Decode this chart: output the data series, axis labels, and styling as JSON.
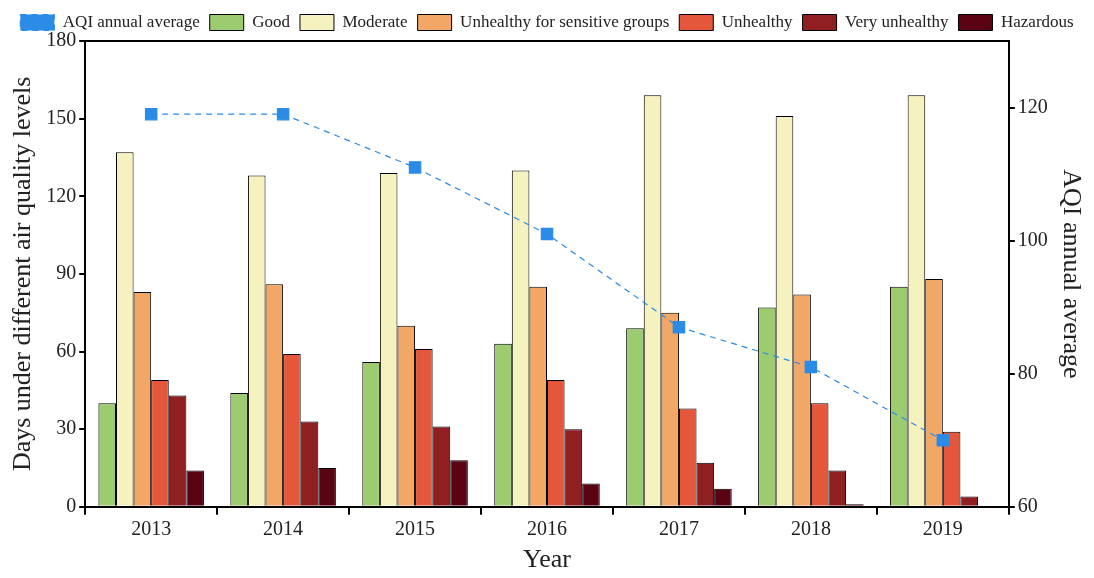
{
  "chart_data": {
    "type": "bar",
    "xlabel": "Year",
    "ylabel": "Days under different air quality levels",
    "y2label": "AQI annual average",
    "categories": [
      "2013",
      "2014",
      "2015",
      "2016",
      "2017",
      "2018",
      "2019"
    ],
    "series": [
      {
        "name": "Good",
        "color": "#9dcb6f",
        "values": [
          40,
          44,
          56,
          63,
          69,
          77,
          85
        ]
      },
      {
        "name": "Moderate",
        "color": "#f6f2c0",
        "values": [
          137,
          128,
          129,
          130,
          159,
          151,
          159
        ]
      },
      {
        "name": "Unhealthy for sensitive groups",
        "color": "#f2a766",
        "values": [
          83,
          86,
          70,
          85,
          75,
          82,
          88
        ]
      },
      {
        "name": "Unhealthy",
        "color": "#e4573a",
        "values": [
          49,
          59,
          61,
          49,
          38,
          40,
          29
        ]
      },
      {
        "name": "Very unhealthy",
        "color": "#8f1f21",
        "values": [
          43,
          33,
          31,
          30,
          17,
          14,
          4
        ]
      },
      {
        "name": "Hazardous",
        "color": "#5a0312",
        "values": [
          14,
          15,
          18,
          9,
          7,
          1,
          0
        ]
      },
      {
        "name": "AQI annual average",
        "type": "line",
        "axis": "y2",
        "color": "#2b8be6",
        "marker": "square",
        "line_style": "dashed",
        "values": [
          119,
          119,
          111,
          101,
          87,
          81,
          70
        ]
      }
    ],
    "ylim": [
      0,
      180
    ],
    "yticks": [
      0,
      30,
      60,
      90,
      120,
      150,
      180
    ],
    "y2lim": [
      60,
      130
    ],
    "y2ticks": [
      60,
      80,
      100,
      120
    ],
    "grid": false,
    "legend": "top"
  }
}
